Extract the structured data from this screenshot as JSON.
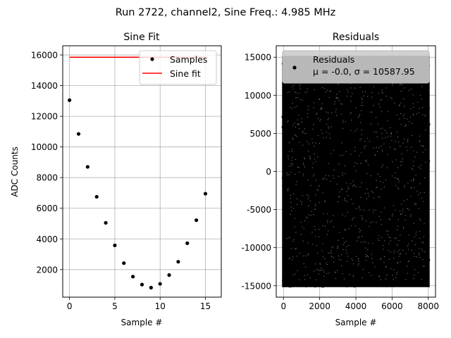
{
  "figure": {
    "suptitle": "Run 2722, channel2, Sine Freq.: 4.985 MHz"
  },
  "chart_data": [
    {
      "type": "scatter",
      "title": "Sine Fit",
      "xlabel": "Sample #",
      "ylabel": "ADC Counts",
      "xlim": [
        -0.75,
        16.75
      ],
      "ylim": [
        200,
        16600
      ],
      "xticks": [
        0,
        5,
        10,
        15
      ],
      "yticks": [
        2000,
        4000,
        6000,
        8000,
        10000,
        12000,
        14000,
        16000
      ],
      "grid": true,
      "legend_position": "top-right",
      "series": [
        {
          "name": "Samples",
          "kind": "points",
          "color": "#000000",
          "x": [
            0,
            1,
            2,
            3,
            4,
            5,
            6,
            7,
            8,
            9,
            10,
            11,
            12,
            13,
            14,
            15
          ],
          "y": [
            13050,
            10850,
            8700,
            6750,
            5050,
            3580,
            2420,
            1540,
            1020,
            820,
            1070,
            1640,
            2510,
            3720,
            5220,
            6950
          ]
        },
        {
          "name": "Sine fit",
          "kind": "line",
          "color": "#ff0000",
          "x": [
            0,
            15
          ],
          "y": [
            15850,
            15850
          ]
        }
      ]
    },
    {
      "type": "scatter",
      "title": "Residuals",
      "xlabel": "Sample #",
      "ylabel": "",
      "xlim": [
        -400,
        8400
      ],
      "ylim": [
        -16500,
        16500
      ],
      "xticks": [
        0,
        2000,
        4000,
        6000,
        8000
      ],
      "yticks": [
        -15000,
        -10000,
        -5000,
        0,
        5000,
        10000,
        15000
      ],
      "grid": true,
      "legend_position": "top",
      "series": [
        {
          "name": "Residuals",
          "legend_stats": "μ = -0.0, σ = 10587.95",
          "kind": "dense-points",
          "color": "#000000",
          "x_range": [
            0,
            8000
          ],
          "y_range": [
            -15000,
            15000
          ]
        }
      ]
    }
  ]
}
